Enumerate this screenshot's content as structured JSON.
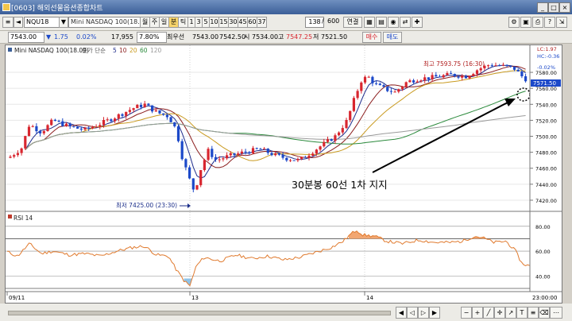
{
  "window": {
    "title": "[0603] 해외선물옵션종합차트",
    "buttons": [
      "_",
      "□",
      "×"
    ]
  },
  "toolbar": {
    "symbol_code": "NQU18",
    "symbol_name": "Mini NASDAQ 100(18.09)",
    "period_tabs": [
      "월",
      "주",
      "일",
      "분",
      "틱",
      "1",
      "3",
      "5",
      "10",
      "15",
      "30",
      "45",
      "60",
      "37"
    ],
    "selected_tab": "분",
    "count_current": "138",
    "count_total": "600",
    "link_label": "연결"
  },
  "quote": {
    "price": "7543.00",
    "arrow": "▼",
    "change": "1.75",
    "change_pct": "0.02%",
    "volume": "17,955",
    "volume_pct": "7.80%",
    "prev_label": "최우선",
    "bid": "7543.00",
    "ask": "7542.50",
    "open_label": "시",
    "open": "7534.00",
    "high_label": "고",
    "high": "7547.25",
    "low_label": "저",
    "low": "7521.50",
    "buy_label": "매수",
    "sell_label": "매도"
  },
  "chart": {
    "legend_title": "Mini NASDAQ 100(18.09)",
    "legend_type": "종가 단순",
    "ma_periods": [
      "5",
      "10",
      "20",
      "60",
      "120"
    ],
    "ma_colors": [
      "#1f2d8c",
      "#8c1f1f",
      "#c99a1f",
      "#2b8a3c",
      "#9a9a9a"
    ],
    "price_ticks": [
      "7580.00",
      "7560.00",
      "7540.00",
      "7520.00",
      "7500.00",
      "7480.00",
      "7460.00",
      "7440.00",
      "7420.00"
    ],
    "high_annotation": "최고 7593.75 (16:30)",
    "low_annotation": "최저 7425.00 (23:30)",
    "current_price_box": "7571.50",
    "corner_labels": [
      "LC:1.97",
      "HC:-0.36",
      "-0.02%"
    ],
    "callout_text": "30분봉 60선 1차 지지",
    "date_labels": [
      "09/11",
      "13",
      "14"
    ],
    "time_label": "23:00:00"
  },
  "rsi": {
    "label": "RSI 14",
    "ticks": [
      "80.00",
      "60.00",
      "40.00"
    ]
  },
  "colors": {
    "up": "#d8262f",
    "down": "#1c49c9",
    "rsi_line": "#e07a2e",
    "rsi_fill": "#f2a772",
    "rsi_low_fill": "#8fc3e8"
  }
}
